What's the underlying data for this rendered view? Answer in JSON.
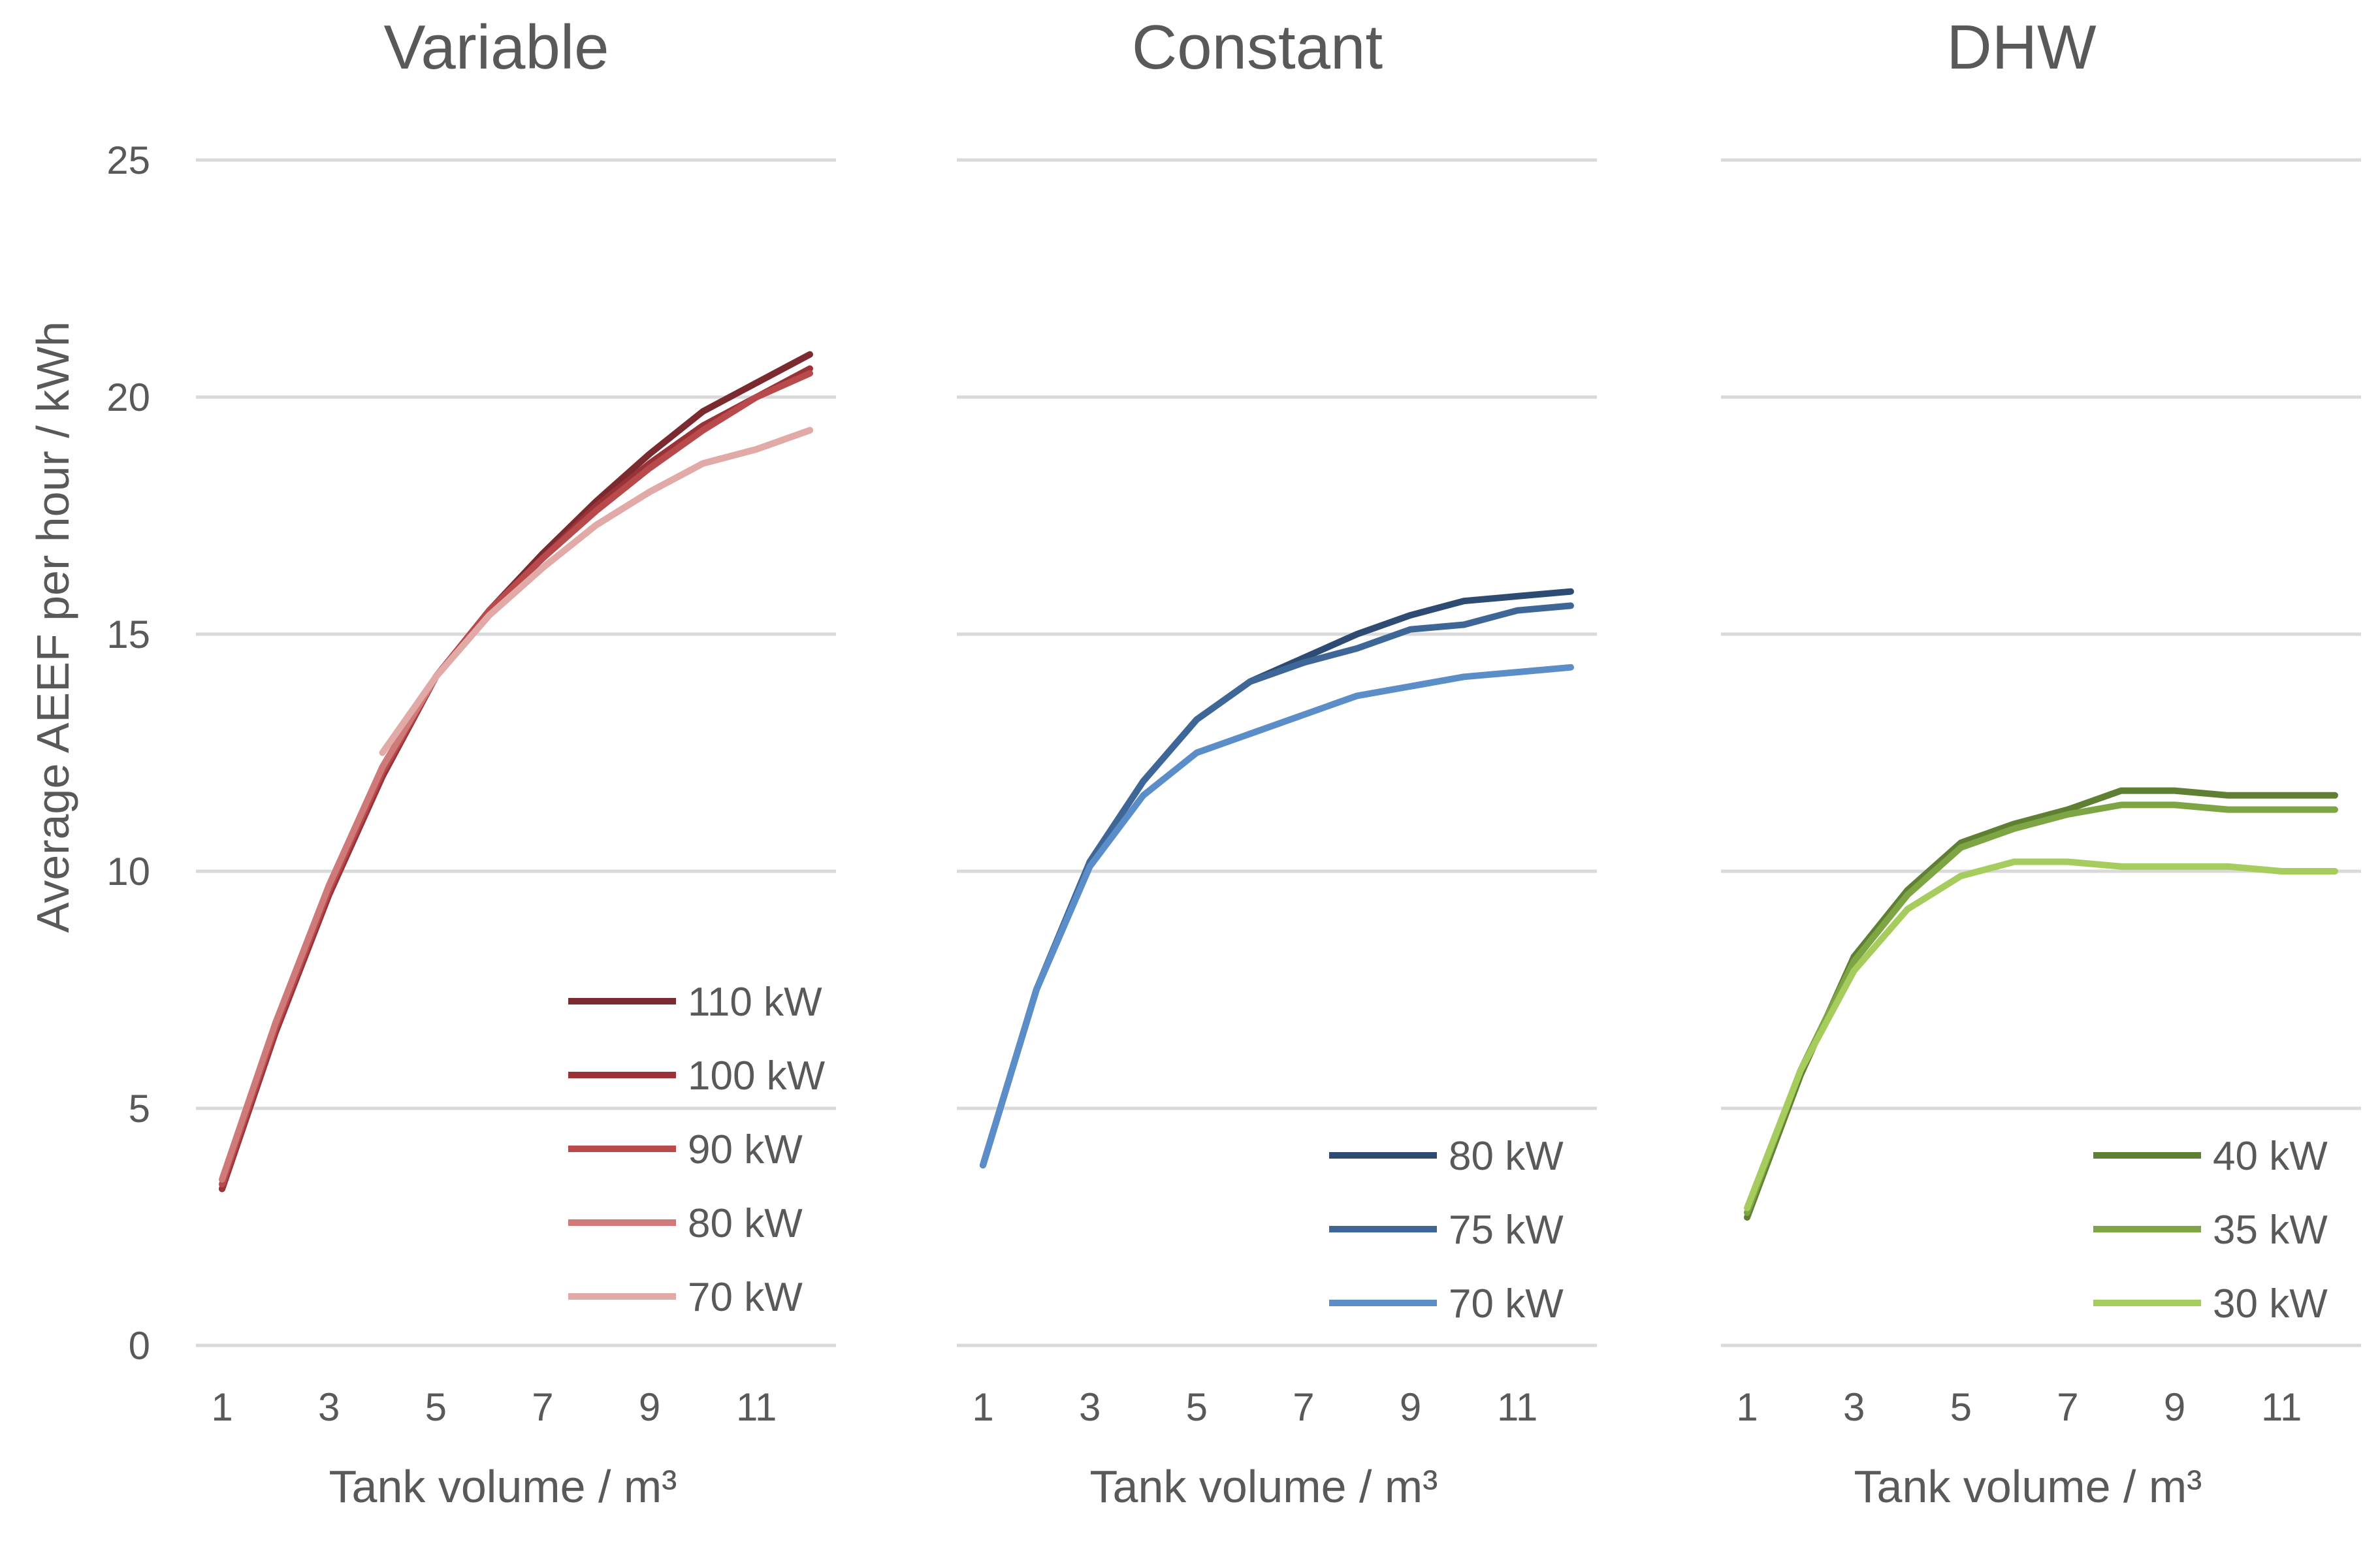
{
  "chart_data": [
    {
      "type": "line",
      "title": "Variable",
      "xlabel": "Tank volume / m³",
      "ylabel": "Average AEEF per hour / kWh",
      "x": [
        1,
        2,
        3,
        4,
        5,
        6,
        7,
        8,
        9,
        10,
        11,
        12
      ],
      "xticks": [
        "1",
        "3",
        "5",
        "7",
        "9",
        "11"
      ],
      "xlim": [
        1,
        12
      ],
      "yticks": [
        "0",
        "5",
        "10",
        "15",
        "20",
        "25"
      ],
      "ylim": [
        0,
        25
      ],
      "legend_position": "bottom-right",
      "series": [
        {
          "name": "110 kW",
          "color": "#7b2a2f",
          "values": [
            3.3,
            6.6,
            9.5,
            12.0,
            14.1,
            15.5,
            16.7,
            17.8,
            18.8,
            19.7,
            20.3,
            20.9
          ]
        },
        {
          "name": "100 kW",
          "color": "#9a3237",
          "values": [
            3.3,
            6.6,
            9.5,
            12.0,
            14.1,
            15.5,
            16.6,
            17.7,
            18.6,
            19.4,
            20.0,
            20.6
          ]
        },
        {
          "name": "90 kW",
          "color": "#b84a4c",
          "values": [
            3.4,
            6.7,
            9.6,
            12.1,
            14.1,
            15.5,
            16.6,
            17.6,
            18.5,
            19.3,
            20.0,
            20.5
          ]
        },
        {
          "name": "80 kW",
          "color": "#cf7a79",
          "values": [
            3.5,
            6.8,
            9.7,
            12.2,
            14.1,
            15.4,
            16.4,
            17.3,
            18.0,
            18.6,
            18.9,
            19.3
          ]
        },
        {
          "name": "70 kW",
          "color": "#e2aaa7",
          "values": [
            null,
            null,
            null,
            12.5,
            14.1,
            15.4,
            16.4,
            17.3,
            18.0,
            18.6,
            18.9,
            19.3
          ]
        }
      ]
    },
    {
      "type": "line",
      "title": "Constant",
      "xlabel": "Tank volume / m³",
      "ylabel": "",
      "x": [
        1,
        2,
        3,
        4,
        5,
        6,
        7,
        8,
        9,
        10,
        11,
        12
      ],
      "xticks": [
        "1",
        "3",
        "5",
        "7",
        "9",
        "11"
      ],
      "xlim": [
        1,
        12
      ],
      "ylim": [
        0,
        25
      ],
      "legend_position": "bottom-right",
      "series": [
        {
          "name": "80 kW",
          "color": "#2e4b73",
          "values": [
            3.8,
            7.5,
            10.2,
            11.9,
            13.2,
            14.0,
            14.5,
            15.0,
            15.4,
            15.7,
            15.8,
            15.9
          ]
        },
        {
          "name": "75 kW",
          "color": "#3e6798",
          "values": [
            3.8,
            7.5,
            10.2,
            11.9,
            13.2,
            14.0,
            14.4,
            14.7,
            15.1,
            15.2,
            15.5,
            15.6
          ]
        },
        {
          "name": "70 kW",
          "color": "#5b8dc8",
          "values": [
            3.8,
            7.5,
            10.1,
            11.6,
            12.5,
            12.9,
            13.3,
            13.7,
            13.9,
            14.1,
            14.2,
            14.3
          ]
        }
      ]
    },
    {
      "type": "line",
      "title": "DHW",
      "xlabel": "Tank volume / m³",
      "ylabel": "",
      "x": [
        1,
        2,
        3,
        4,
        5,
        6,
        7,
        8,
        9,
        10,
        11,
        12
      ],
      "xticks": [
        "1",
        "3",
        "5",
        "7",
        "9",
        "11"
      ],
      "xlim": [
        1,
        12
      ],
      "ylim": [
        0,
        25
      ],
      "legend_position": "bottom-right",
      "series": [
        {
          "name": "40 kW",
          "color": "#5f7f33",
          "values": [
            2.7,
            5.7,
            8.2,
            9.6,
            10.6,
            11.0,
            11.3,
            11.7,
            11.7,
            11.6,
            11.6,
            11.6
          ]
        },
        {
          "name": "35 kW",
          "color": "#7ea543",
          "values": [
            2.8,
            5.8,
            8.1,
            9.5,
            10.5,
            10.9,
            11.2,
            11.4,
            11.4,
            11.3,
            11.3,
            11.3
          ]
        },
        {
          "name": "30 kW",
          "color": "#a6cc5e",
          "values": [
            2.9,
            5.8,
            7.9,
            9.2,
            9.9,
            10.2,
            10.2,
            10.1,
            10.1,
            10.1,
            10.0,
            10.0
          ]
        }
      ]
    }
  ]
}
